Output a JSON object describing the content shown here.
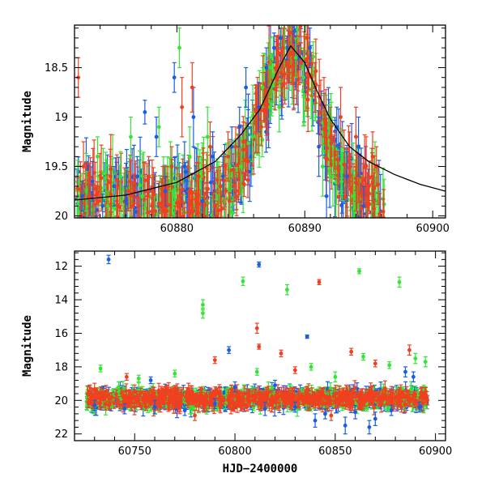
{
  "colors": {
    "blue": "#1a5ce6",
    "green": "#33e633",
    "red": "#f0401f",
    "model": "#000000"
  },
  "chart_data": [
    {
      "type": "scatter",
      "xlabel": "",
      "ylabel": "Magnitude",
      "xlim": [
        60872,
        60901
      ],
      "ylim": [
        20.02,
        18.07
      ],
      "y_inverted": true,
      "xticks": [
        60880,
        60890,
        60900
      ],
      "xtick_labels": [
        "60880",
        "60890",
        "60900"
      ],
      "yticks": [
        18.5,
        19,
        19.5,
        20
      ],
      "ytick_labels": [
        "18.5",
        "19",
        "19.5",
        "20"
      ],
      "model_curve": {
        "description_visible": false,
        "t0": 60888.9,
        "peak_mag": 18.28,
        "base_mag": 19.88,
        "points": [
          [
            60872,
            19.84
          ],
          [
            60876,
            19.79
          ],
          [
            60880,
            19.66
          ],
          [
            60883,
            19.45
          ],
          [
            60885,
            19.18
          ],
          [
            60886.5,
            18.92
          ],
          [
            60888,
            18.5
          ],
          [
            60888.9,
            18.28
          ],
          [
            60890,
            18.45
          ],
          [
            60891,
            18.75
          ],
          [
            60892,
            19.02
          ],
          [
            60893.5,
            19.3
          ],
          [
            60895,
            19.45
          ],
          [
            60897,
            19.58
          ],
          [
            60899,
            19.68
          ],
          [
            60901,
            19.75
          ]
        ]
      },
      "series": [
        {
          "color": "blue",
          "points": [
            [
              60872.6,
              19.8,
              0.15
            ],
            [
              60873.4,
              19.65,
              0.2
            ],
            [
              60874.2,
              19.9,
              0.12
            ],
            [
              60875.1,
              19.7,
              0.2
            ],
            [
              60876.0,
              19.85,
              0.15
            ],
            [
              60876.9,
              19.6,
              0.2
            ],
            [
              60877.5,
              18.95,
              0.12
            ],
            [
              60878.4,
              19.2,
              0.2
            ],
            [
              60879.1,
              19.75,
              0.15
            ],
            [
              60879.8,
              18.6,
              0.15
            ],
            [
              60880.6,
              19.5,
              0.25
            ],
            [
              60881.3,
              19.0,
              0.3
            ],
            [
              60882.0,
              19.85,
              0.2
            ],
            [
              60882.8,
              19.4,
              0.25
            ],
            [
              60883.6,
              19.6,
              0.2
            ],
            [
              60884.3,
              19.3,
              0.2
            ],
            [
              60884.9,
              19.1,
              0.2
            ],
            [
              60885.4,
              18.7,
              0.2
            ],
            [
              60885.8,
              19.4,
              0.3
            ],
            [
              60886.4,
              18.9,
              0.25
            ],
            [
              60887.0,
              18.5,
              0.2
            ],
            [
              60887.6,
              18.3,
              0.15
            ],
            [
              60888.1,
              18.2,
              0.1
            ],
            [
              60888.6,
              18.3,
              0.12
            ],
            [
              60889.1,
              18.15,
              0.1
            ],
            [
              60889.5,
              18.4,
              0.12
            ],
            [
              60890.0,
              18.6,
              0.15
            ],
            [
              60890.4,
              18.3,
              0.2
            ],
            [
              60891.1,
              19.3,
              0.3
            ],
            [
              60891.7,
              19.8,
              0.3
            ],
            [
              60892.5,
              19.1,
              0.2
            ],
            [
              60893.3,
              19.6,
              0.25
            ],
            [
              60894.2,
              19.3,
              0.3
            ],
            [
              60894.6,
              19.9,
              0.2
            ]
          ]
        },
        {
          "color": "green",
          "points": [
            [
              60872.9,
              19.75,
              0.2
            ],
            [
              60873.8,
              19.4,
              0.2
            ],
            [
              60874.6,
              19.9,
              0.15
            ],
            [
              60875.6,
              19.6,
              0.25
            ],
            [
              60876.4,
              19.2,
              0.2
            ],
            [
              60877.3,
              19.8,
              0.2
            ],
            [
              60878.6,
              19.1,
              0.2
            ],
            [
              60879.5,
              19.5,
              0.25
            ],
            [
              60880.2,
              18.3,
              0.2
            ],
            [
              60881.0,
              19.4,
              0.3
            ],
            [
              60881.9,
              19.6,
              0.2
            ],
            [
              60882.4,
              19.2,
              0.3
            ],
            [
              60883.3,
              19.7,
              0.2
            ],
            [
              60884.1,
              19.5,
              0.25
            ],
            [
              60885.0,
              19.5,
              0.3
            ],
            [
              60885.9,
              19.2,
              0.25
            ],
            [
              60886.7,
              18.7,
              0.2
            ],
            [
              60887.3,
              18.5,
              0.3
            ],
            [
              60888.0,
              18.9,
              0.25
            ],
            [
              60888.4,
              18.3,
              0.2
            ],
            [
              60889.3,
              18.4,
              0.2
            ],
            [
              60889.9,
              18.6,
              0.2
            ],
            [
              60891.4,
              19.5,
              0.3
            ],
            [
              60892.2,
              19.6,
              0.3
            ],
            [
              60893.8,
              19.8,
              0.25
            ]
          ]
        },
        {
          "color": "red",
          "points": [
            [
              60872.3,
              18.6,
              0.2
            ],
            [
              60872.7,
              19.5,
              0.25
            ],
            [
              60873.2,
              19.8,
              0.2
            ],
            [
              60873.9,
              19.85,
              0.15
            ],
            [
              60874.8,
              19.6,
              0.2
            ],
            [
              60875.3,
              19.85,
              0.15
            ],
            [
              60876.2,
              19.75,
              0.2
            ],
            [
              60877.0,
              19.9,
              0.15
            ],
            [
              60877.8,
              19.6,
              0.2
            ],
            [
              60878.9,
              19.7,
              0.2
            ],
            [
              60879.6,
              19.5,
              0.2
            ],
            [
              60880.4,
              18.9,
              0.3
            ],
            [
              60881.2,
              18.7,
              0.25
            ],
            [
              60881.7,
              19.6,
              0.2
            ],
            [
              60882.6,
              19.3,
              0.25
            ],
            [
              60883.4,
              19.7,
              0.2
            ],
            [
              60884.0,
              19.4,
              0.25
            ],
            [
              60884.6,
              19.3,
              0.2
            ],
            [
              60885.2,
              19.25,
              0.2
            ],
            [
              60886.2,
              18.95,
              0.2
            ],
            [
              60886.9,
              18.8,
              0.25
            ],
            [
              60887.8,
              18.6,
              0.2
            ],
            [
              60888.3,
              18.3,
              0.2
            ],
            [
              60889.0,
              18.35,
              0.2
            ],
            [
              60889.7,
              18.45,
              0.2
            ],
            [
              60890.2,
              18.2,
              0.2
            ],
            [
              60890.8,
              18.7,
              0.25
            ],
            [
              60891.5,
              18.9,
              0.3
            ],
            [
              60892.0,
              19.2,
              0.3
            ],
            [
              60892.8,
              19.0,
              0.3
            ],
            [
              60893.5,
              19.4,
              0.25
            ],
            [
              60894.0,
              19.2,
              0.3
            ],
            [
              60894.8,
              19.5,
              0.3
            ],
            [
              60895.3,
              19.4,
              0.25
            ],
            [
              60895.6,
              19.5,
              0.2
            ]
          ]
        }
      ]
    },
    {
      "type": "scatter",
      "xlabel": "HJD−2400000",
      "ylabel": "Magnitude",
      "xlim": [
        60720,
        60905
      ],
      "ylim": [
        22.4,
        11.1
      ],
      "y_inverted": true,
      "xticks": [
        60750,
        60800,
        60850,
        60900
      ],
      "xtick_labels": [
        "60750",
        "60800",
        "60850",
        "60900"
      ],
      "yticks": [
        12,
        14,
        16,
        18,
        20,
        22
      ],
      "ytick_labels": [
        "12",
        "14",
        "16",
        "18",
        "20",
        "22"
      ],
      "baseline": {
        "x_start": 60726,
        "x_end": 60896,
        "mag": 19.9
      },
      "series": [
        {
          "color": "blue",
          "points": [
            [
              60737,
              11.6,
              0.25
            ],
            [
              60812,
              11.9,
              0.15
            ],
            [
              60797,
              17.0,
              0.2
            ],
            [
              60836,
              16.2,
              0.1
            ],
            [
              60730,
              20.3,
              0.3
            ],
            [
              60745,
              20.5,
              0.3
            ],
            [
              60760,
              20.4,
              0.4
            ],
            [
              60775,
              20.6,
              0.3
            ],
            [
              60790,
              20.2,
              0.3
            ],
            [
              60800,
              19.2,
              0.3
            ],
            [
              60815,
              20.5,
              0.4
            ],
            [
              60830,
              20.4,
              0.3
            ],
            [
              60840,
              21.2,
              0.4
            ],
            [
              60845,
              20.8,
              0.3
            ],
            [
              60855,
              21.5,
              0.5
            ],
            [
              60860,
              20.7,
              0.4
            ],
            [
              60870,
              21.1,
              0.4
            ],
            [
              60878,
              20.6,
              0.3
            ],
            [
              60885,
              18.3,
              0.3
            ],
            [
              60889,
              18.6,
              0.3
            ],
            [
              60892,
              20.4,
              0.3
            ],
            [
              60758,
              18.8,
              0.2
            ],
            [
              60820,
              19.1,
              0.3
            ],
            [
              60867,
              21.6,
              0.4
            ]
          ]
        },
        {
          "color": "green",
          "points": [
            [
              60784,
              14.3,
              0.3
            ],
            [
              60784,
              14.8,
              0.3
            ],
            [
              60804,
              12.9,
              0.25
            ],
            [
              60826,
              13.4,
              0.3
            ],
            [
              60862,
              12.3,
              0.15
            ],
            [
              60882,
              12.95,
              0.3
            ],
            [
              60733,
              18.1,
              0.2
            ],
            [
              60752,
              18.7,
              0.2
            ],
            [
              60770,
              18.4,
              0.2
            ],
            [
              60811,
              18.3,
              0.2
            ],
            [
              60838,
              18.0,
              0.2
            ],
            [
              60864,
              17.4,
              0.2
            ],
            [
              60877,
              17.9,
              0.2
            ],
            [
              60890,
              17.5,
              0.3
            ],
            [
              60742,
              19.2,
              0.3
            ],
            [
              60850,
              18.6,
              0.3
            ],
            [
              60895,
              17.7,
              0.3
            ]
          ]
        },
        {
          "color": "red",
          "points": [
            [
              60811,
              15.7,
              0.3
            ],
            [
              60812,
              16.8,
              0.15
            ],
            [
              60842,
              12.95,
              0.15
            ],
            [
              60823,
              17.2,
              0.2
            ],
            [
              60858,
              17.1,
              0.2
            ],
            [
              60887,
              17.0,
              0.3
            ],
            [
              60790,
              17.6,
              0.2
            ],
            [
              60830,
              18.2,
              0.2
            ],
            [
              60870,
              17.8,
              0.2
            ],
            [
              60746,
              18.6,
              0.2
            ],
            [
              60766,
              19.3,
              0.2
            ],
            [
              60780,
              20.9,
              0.3
            ],
            [
              60798,
              20.5,
              0.3
            ],
            [
              60848,
              20.9,
              0.3
            ],
            [
              60883,
              20.4,
              0.3
            ],
            [
              60893,
              19.5,
              0.3
            ]
          ]
        }
      ]
    }
  ]
}
